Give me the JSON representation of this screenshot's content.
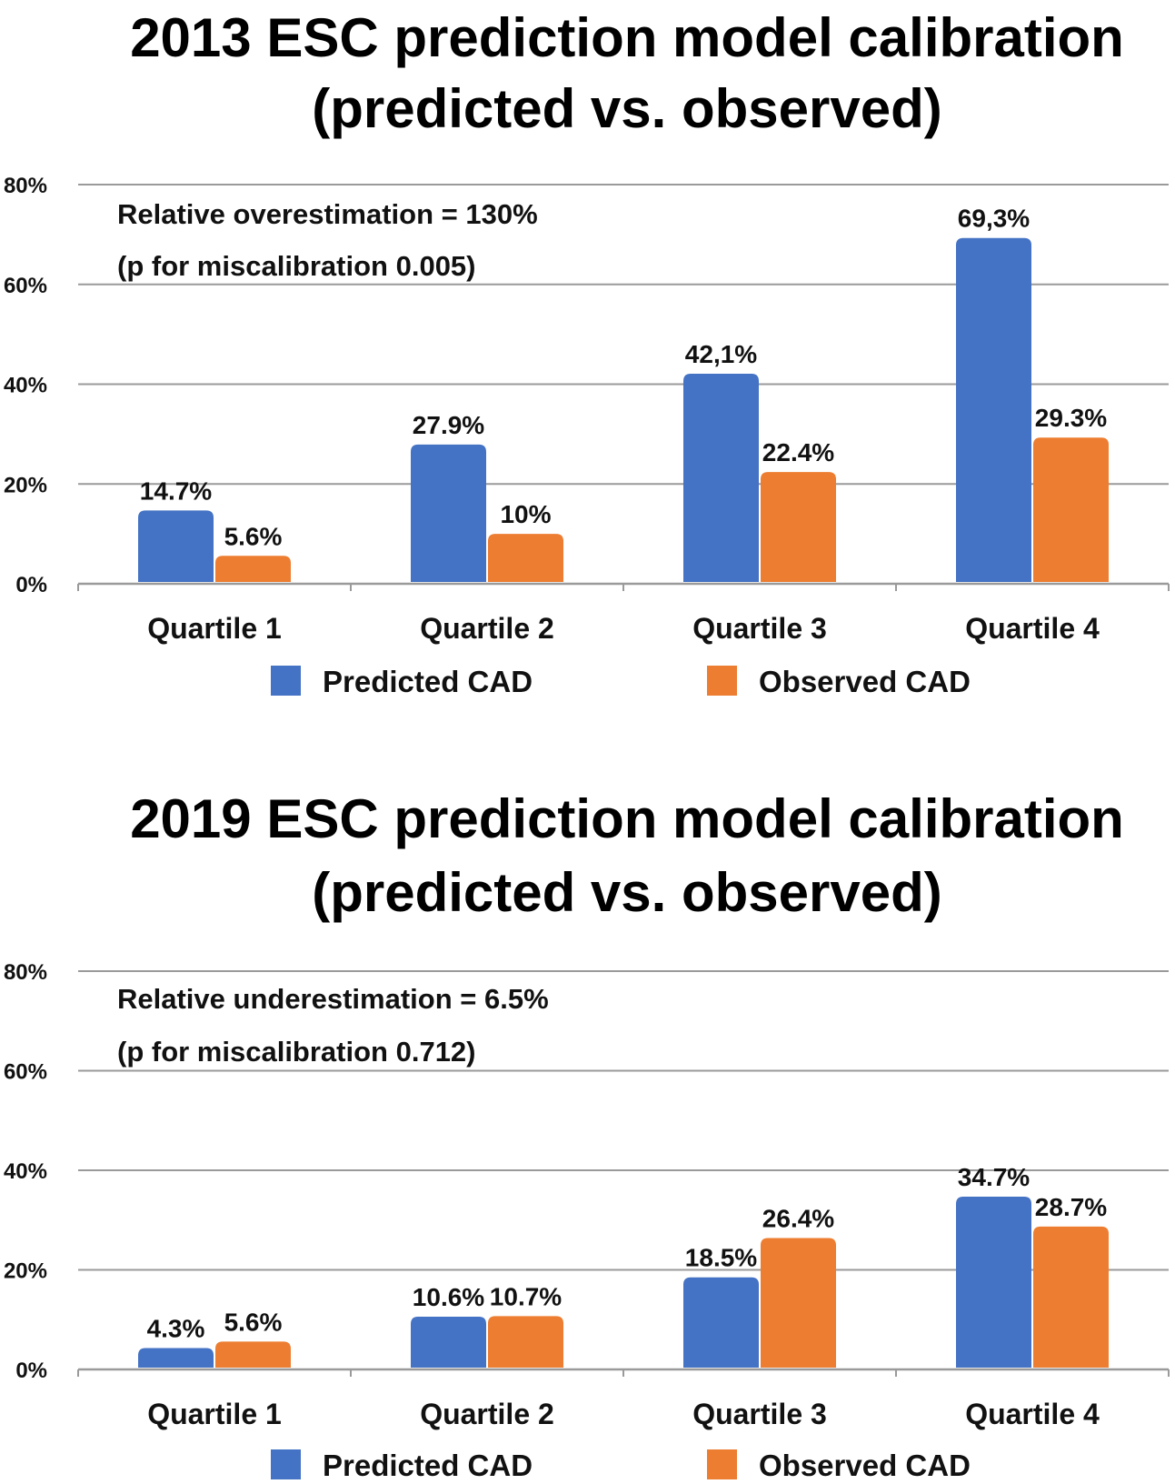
{
  "colors": {
    "predicted": "#4472C4",
    "observed": "#ED7D31",
    "grid": "#9a9a9a"
  },
  "chart_data": [
    {
      "type": "bar",
      "title_lines": [
        "2013 ESC prediction model calibration",
        "(predicted vs. observed)"
      ],
      "categories": [
        "Quartile 1",
        "Quartile 2",
        "Quartile 3",
        "Quartile 4"
      ],
      "series": [
        {
          "name": "Predicted CAD",
          "values": [
            14.7,
            27.9,
            42.1,
            69.3
          ],
          "labels": [
            "14.7%",
            "27.9%",
            "42,1%",
            "69,3%"
          ]
        },
        {
          "name": "Observed CAD",
          "values": [
            5.6,
            10,
            22.4,
            29.3
          ],
          "labels": [
            "5.6%",
            "10%",
            "22.4%",
            "29.3%"
          ]
        }
      ],
      "yticks": [
        "0%",
        "20%",
        "40%",
        "60%",
        "80%"
      ],
      "ylim": [
        0,
        80
      ],
      "grid": true,
      "legend": "bottom",
      "annotations": [
        "Relative overestimation = 130%",
        "(p  for miscalibration 0.005)"
      ]
    },
    {
      "type": "bar",
      "title_lines": [
        "2019 ESC prediction model calibration",
        "(predicted vs. observed)"
      ],
      "categories": [
        "Quartile 1",
        "Quartile 2",
        "Quartile 3",
        "Quartile 4"
      ],
      "series": [
        {
          "name": "Predicted CAD",
          "values": [
            4.3,
            10.6,
            18.5,
            34.7
          ],
          "labels": [
            "4.3%",
            "10.6%",
            "18.5%",
            "34.7%"
          ]
        },
        {
          "name": "Observed CAD",
          "values": [
            5.6,
            10.7,
            26.4,
            28.7
          ],
          "labels": [
            "5.6%",
            "10.7%",
            "26.4%",
            "28.7%"
          ]
        }
      ],
      "yticks": [
        "0%",
        "20%",
        "40%",
        "60%",
        "80%"
      ],
      "ylim": [
        0,
        80
      ],
      "grid": true,
      "legend": "bottom",
      "annotations": [
        "Relative underestimation = 6.5%",
        "(p for miscalibration 0.712)"
      ]
    }
  ]
}
